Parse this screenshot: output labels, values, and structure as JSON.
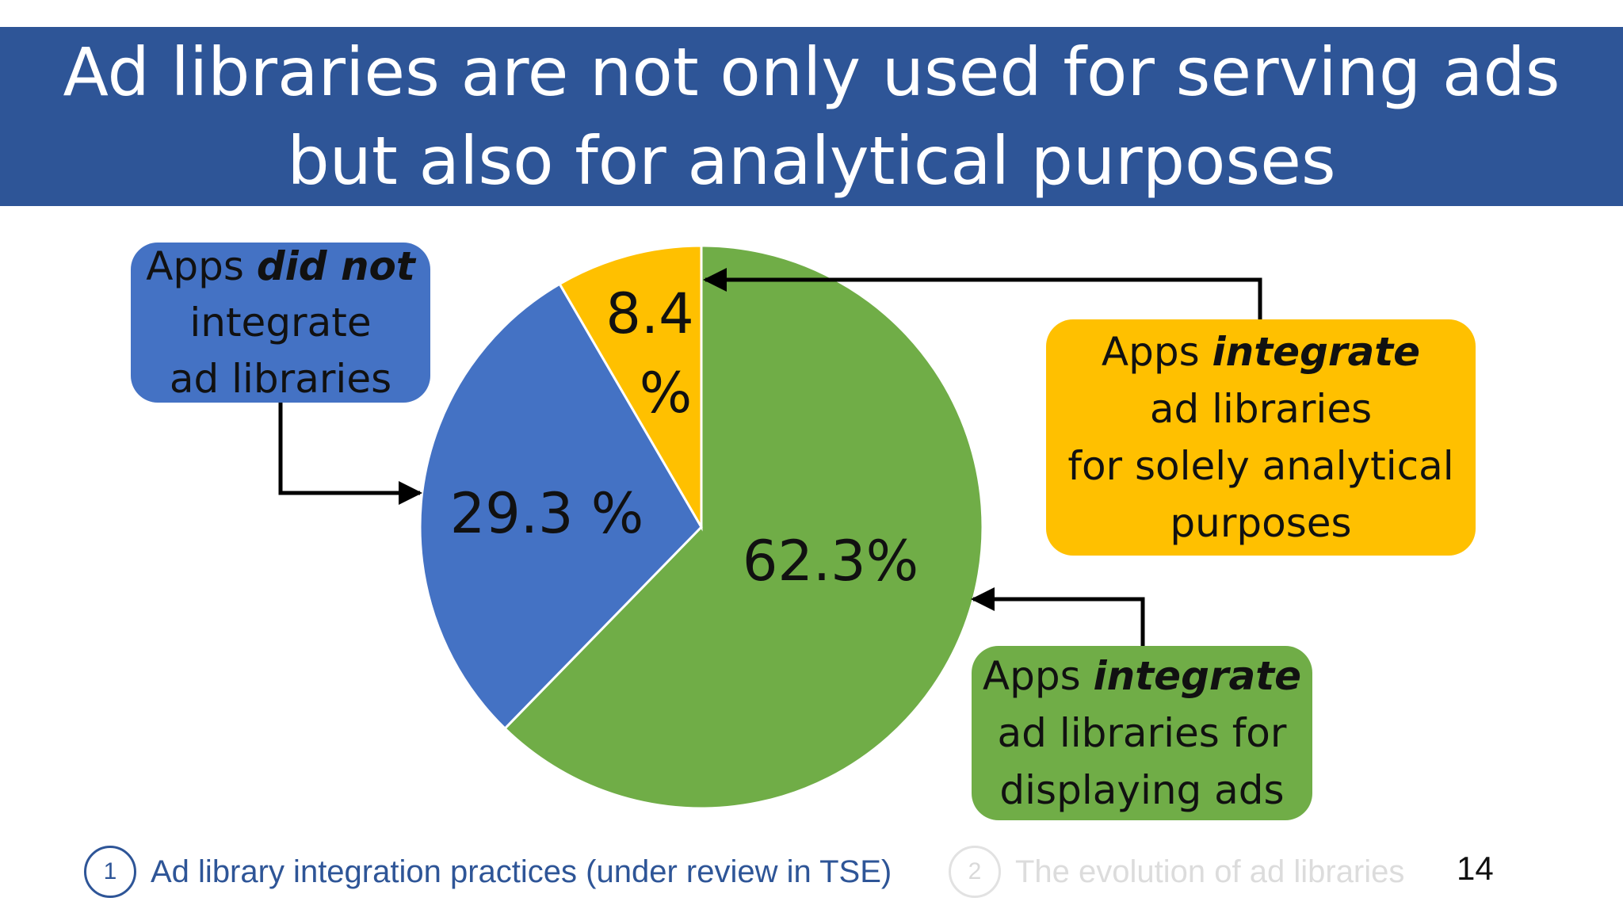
{
  "title": "Ad libraries are not only used for serving ads but also for analytical purposes",
  "chart_data": {
    "type": "pie",
    "start_angle_deg": 0,
    "direction": "clockwise",
    "slices": [
      {
        "label": "62.3%",
        "value": 62.3,
        "color": "#70ad47"
      },
      {
        "label": "29.3 %",
        "value": 29.3,
        "color": "#4472c4"
      },
      {
        "label": "8.4 %",
        "value": 8.4,
        "color": "#ffc000"
      }
    ]
  },
  "callouts": {
    "not_integrate": {
      "pre": "Apps ",
      "emph": "did not",
      "line2": "integrate",
      "line3": "ad libraries",
      "color": "#4472c4"
    },
    "analytical": {
      "pre": "Apps ",
      "emph": "integrate",
      "line2": "ad libraries",
      "line3": "for solely analytical",
      "line4": "purposes",
      "color": "#ffc000"
    },
    "displaying": {
      "pre": "Apps ",
      "emph": "integrate",
      "line2": "ad libraries for",
      "line3": "displaying ads",
      "color": "#70ad47"
    }
  },
  "footer": {
    "active_num": "1",
    "active_text": "Ad library integration practices (under review in TSE)",
    "inactive_num": "2",
    "inactive_text": "The evolution of ad libraries"
  },
  "page_number": "14"
}
